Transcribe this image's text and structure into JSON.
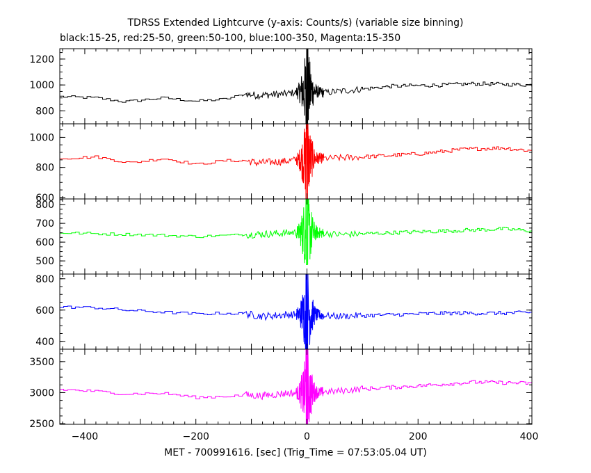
{
  "chart_data": {
    "type": "line",
    "title": "TDRSS Extended Lightcurve (y-axis: Counts/s) (variable size binning)",
    "subtitle": "black:15-25, red:25-50, green:50-100, blue:100-350, Magenta:15-350",
    "xlabel": "MET - 700991616. [sec] (Trig_Time = 07:53:05.04 UT)",
    "xlim": [
      -445,
      405
    ],
    "x_ticks": [
      -400,
      -200,
      0,
      200,
      400
    ],
    "x_tick_labels": [
      "−400",
      "−200",
      "0",
      "200",
      "400"
    ],
    "grid": false,
    "panels": [
      {
        "band": "black:15-25",
        "color": "#000000",
        "ylim": [
          700,
          1280
        ],
        "y_ticks": [
          800,
          1000,
          1200
        ],
        "baseline_points": [
          [
            -445,
            910
          ],
          [
            -380,
            900
          ],
          [
            -330,
            870
          ],
          [
            -260,
            900
          ],
          [
            -200,
            875
          ],
          [
            -150,
            890
          ],
          [
            -110,
            930
          ],
          [
            -90,
            920
          ],
          [
            -40,
            930
          ],
          [
            -10,
            950
          ],
          [
            0,
            960
          ],
          [
            30,
            940
          ],
          [
            80,
            960
          ],
          [
            150,
            990
          ],
          [
            250,
            1000
          ],
          [
            300,
            1010
          ],
          [
            405,
            1000
          ]
        ],
        "burst_peak": 1280,
        "burst_min": 700
      },
      {
        "band": "red:25-50",
        "color": "#ff0000",
        "ylim": [
          590,
          1090
        ],
        "y_ticks": [
          600,
          800,
          1000
        ],
        "baseline_points": [
          [
            -445,
            860
          ],
          [
            -380,
            870
          ],
          [
            -320,
            830
          ],
          [
            -260,
            860
          ],
          [
            -200,
            820
          ],
          [
            -150,
            845
          ],
          [
            -110,
            845
          ],
          [
            -90,
            830
          ],
          [
            -40,
            840
          ],
          [
            0,
            860
          ],
          [
            40,
            860
          ],
          [
            100,
            870
          ],
          [
            200,
            890
          ],
          [
            280,
            920
          ],
          [
            350,
            930
          ],
          [
            405,
            910
          ]
        ],
        "burst_peak": 1090,
        "burst_min": 590
      },
      {
        "band": "green:50-100",
        "color": "#00ff00",
        "ylim": [
          430,
          830
        ],
        "y_ticks": [
          500,
          600,
          700,
          800
        ],
        "baseline_points": [
          [
            -445,
            650
          ],
          [
            -380,
            645
          ],
          [
            -300,
            640
          ],
          [
            -200,
            630
          ],
          [
            -150,
            635
          ],
          [
            -110,
            640
          ],
          [
            -60,
            645
          ],
          [
            0,
            655
          ],
          [
            60,
            640
          ],
          [
            150,
            650
          ],
          [
            250,
            660
          ],
          [
            350,
            670
          ],
          [
            405,
            660
          ]
        ],
        "burst_peak": 830,
        "burst_min": 480
      },
      {
        "band": "blue:100-350",
        "color": "#0000ff",
        "ylim": [
          350,
          830
        ],
        "y_ticks": [
          400,
          600,
          800
        ],
        "baseline_points": [
          [
            -445,
            620
          ],
          [
            -380,
            615
          ],
          [
            -330,
            600
          ],
          [
            -250,
            585
          ],
          [
            -200,
            575
          ],
          [
            -150,
            580
          ],
          [
            -110,
            575
          ],
          [
            -80,
            560
          ],
          [
            -40,
            570
          ],
          [
            0,
            575
          ],
          [
            50,
            560
          ],
          [
            150,
            570
          ],
          [
            250,
            580
          ],
          [
            350,
            580
          ],
          [
            405,
            585
          ]
        ],
        "burst_peak": 830,
        "burst_min": 350
      },
      {
        "band": "Magenta:15-350",
        "color": "#ff00ff",
        "ylim": [
          2490,
          3700
        ],
        "y_ticks": [
          2500,
          3000,
          3500
        ],
        "baseline_points": [
          [
            -445,
            3050
          ],
          [
            -380,
            3020
          ],
          [
            -330,
            2980
          ],
          [
            -260,
            2990
          ],
          [
            -200,
            2920
          ],
          [
            -150,
            2940
          ],
          [
            -110,
            2960
          ],
          [
            -80,
            2950
          ],
          [
            -40,
            2990
          ],
          [
            0,
            3000
          ],
          [
            50,
            3020
          ],
          [
            100,
            3060
          ],
          [
            200,
            3110
          ],
          [
            300,
            3170
          ],
          [
            405,
            3150
          ]
        ],
        "burst_peak": 3700,
        "burst_min": 2490
      }
    ]
  }
}
